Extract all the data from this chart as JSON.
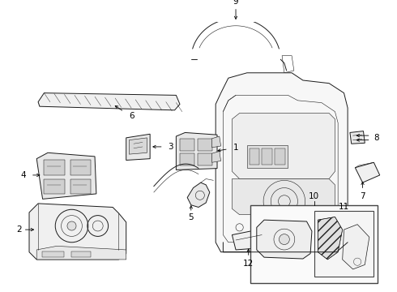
{
  "bg_color": "#ffffff",
  "line_color": "#1a1a1a",
  "lw": 0.7,
  "lw_thin": 0.4,
  "fs": 7.5,
  "figsize": [
    4.9,
    3.6
  ],
  "dpi": 100
}
